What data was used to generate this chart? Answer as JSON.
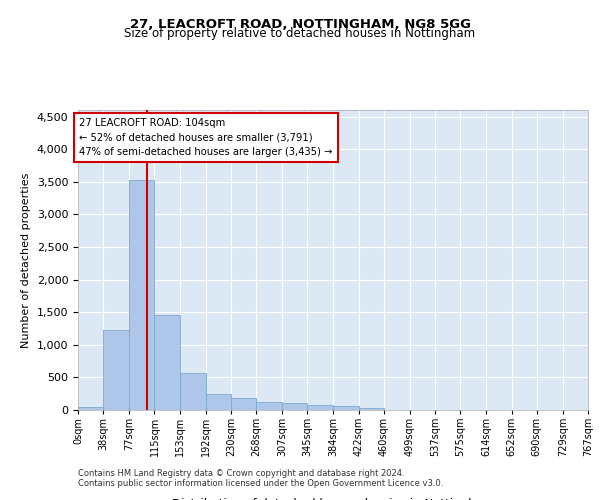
{
  "title1": "27, LEACROFT ROAD, NOTTINGHAM, NG8 5GG",
  "title2": "Size of property relative to detached houses in Nottingham",
  "xlabel": "Distribution of detached houses by size in Nottingham",
  "ylabel": "Number of detached properties",
  "footnote1": "Contains HM Land Registry data © Crown copyright and database right 2024.",
  "footnote2": "Contains public sector information licensed under the Open Government Licence v3.0.",
  "annotation_title": "27 LEACROFT ROAD: 104sqm",
  "annotation_line2": "← 52% of detached houses are smaller (3,791)",
  "annotation_line3": "47% of semi-detached houses are larger (3,435) →",
  "property_size": 104,
  "bar_color": "#aec6e8",
  "bar_edge_color": "#7aaad0",
  "vline_color": "#cc0000",
  "annotation_box_color": "#cc0000",
  "background_color": "#ffffff",
  "plot_bg_color": "#dce9f5",
  "grid_color": "#ffffff",
  "bin_edges": [
    0,
    38,
    77,
    115,
    153,
    192,
    230,
    268,
    307,
    345,
    384,
    422,
    460,
    499,
    537,
    575,
    614,
    652,
    690,
    729,
    767
  ],
  "bin_labels": [
    "0sqm",
    "38sqm",
    "77sqm",
    "115sqm",
    "153sqm",
    "192sqm",
    "230sqm",
    "268sqm",
    "307sqm",
    "345sqm",
    "384sqm",
    "422sqm",
    "460sqm",
    "499sqm",
    "537sqm",
    "575sqm",
    "614sqm",
    "652sqm",
    "690sqm",
    "729sqm",
    "767sqm"
  ],
  "bar_heights": [
    50,
    1230,
    3530,
    1450,
    560,
    240,
    190,
    130,
    100,
    70,
    55,
    30,
    5,
    0,
    0,
    0,
    0,
    0,
    0,
    0
  ],
  "ylim": [
    0,
    4600
  ],
  "yticks": [
    0,
    500,
    1000,
    1500,
    2000,
    2500,
    3000,
    3500,
    4000,
    4500
  ]
}
